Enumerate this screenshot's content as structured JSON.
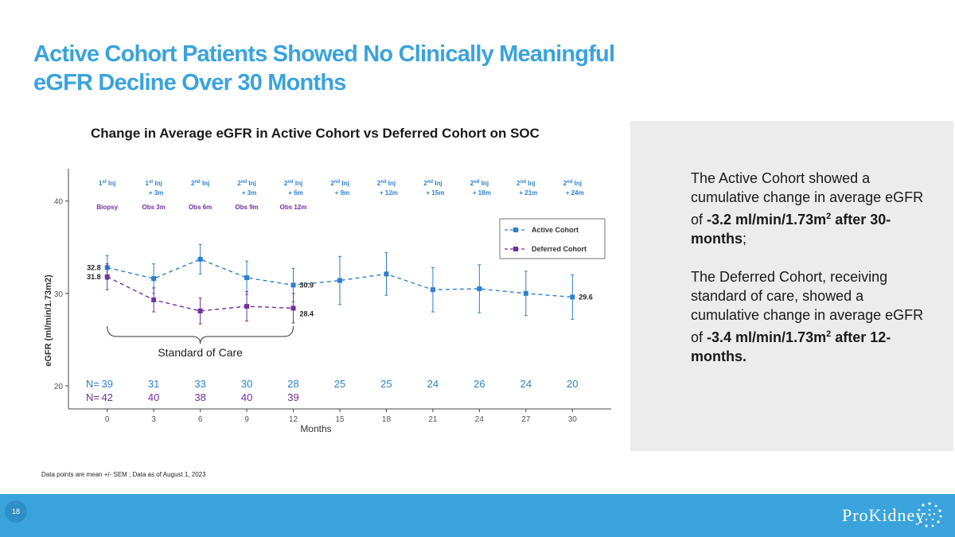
{
  "slide": {
    "title_line1": "Active Cohort Patients Showed No Clinically Meaningful",
    "title_line2": "eGFR Decline Over 30 Months",
    "page_number": "18",
    "footnote": "Data points are mean +/- SEM ; Data as of August 1, 2023",
    "logo_text": "ProKidney"
  },
  "side_panel": {
    "p1_text": "The Active Cohort showed a cumulative change in average eGFR of",
    "p1_value": "-3.2 ml/min/1.73m",
    "p1_suffix": "after 30-months",
    "p2_text": "The Deferred Cohort, receiving standard of care, showed a cumulative change in average eGFR of",
    "p2_value": "-3.4  ml/min/1.73m",
    "p2_suffix": "after 12-months."
  },
  "colors": {
    "active": "#2e7fcf",
    "deferred": "#7030a0",
    "title": "#3aa3dc",
    "footer": "#3aa3dc"
  },
  "chart_data": {
    "type": "line",
    "title": "Change in Average eGFR in Active Cohort vs Deferred Cohort on SOC",
    "xlabel": "Months",
    "ylabel": "eGFR (ml/min/1.73m2)",
    "xlim": [
      -2.5,
      32.5
    ],
    "ylim": [
      17.5,
      43.5
    ],
    "xticks": [
      0,
      3,
      6,
      9,
      12,
      15,
      18,
      21,
      24,
      27,
      30
    ],
    "yticks": [
      20,
      30,
      40
    ],
    "legend_position": "top-right",
    "series": [
      {
        "name": "Active Cohort",
        "color": "#2e7fcf",
        "x": [
          0,
          3,
          6,
          9,
          12,
          15,
          18,
          21,
          24,
          27,
          30
        ],
        "y": [
          32.8,
          31.6,
          33.7,
          31.7,
          30.9,
          31.4,
          32.1,
          30.4,
          30.5,
          30.0,
          29.6
        ],
        "err": [
          1.3,
          1.6,
          1.6,
          1.8,
          1.8,
          2.6,
          2.3,
          2.4,
          2.6,
          2.4,
          2.4
        ]
      },
      {
        "name": "Deferred Cohort",
        "color": "#7030a0",
        "x": [
          0,
          3,
          6,
          9,
          12
        ],
        "y": [
          31.8,
          29.3,
          28.1,
          28.6,
          28.4
        ],
        "err": [
          1.4,
          1.3,
          1.4,
          1.6,
          1.6
        ]
      }
    ],
    "data_labels": [
      {
        "text": "32.8",
        "series": 0,
        "index": 0,
        "side": "left"
      },
      {
        "text": "30.9",
        "series": 0,
        "index": 4,
        "side": "right"
      },
      {
        "text": "29.6",
        "series": 0,
        "index": 10,
        "side": "right"
      },
      {
        "text": "31.8",
        "series": 1,
        "index": 0,
        "side": "left"
      },
      {
        "text": "28.4",
        "series": 1,
        "index": 4,
        "side": "right"
      }
    ],
    "injection_labels": [
      {
        "x": 0,
        "sup": "st",
        "line2": ""
      },
      {
        "x": 3,
        "sup": "st",
        "line2": "+ 3m"
      },
      {
        "x": 6,
        "sup": "nd",
        "line2": ""
      },
      {
        "x": 9,
        "sup": "nd",
        "line2": "+ 3m"
      },
      {
        "x": 12,
        "sup": "nd",
        "line2": "+ 6m"
      },
      {
        "x": 15,
        "sup": "nd",
        "line2": "+ 9m"
      },
      {
        "x": 18,
        "sup": "nd",
        "line2": "+ 12m"
      },
      {
        "x": 21,
        "sup": "nd",
        "line2": "+ 15m"
      },
      {
        "x": 24,
        "sup": "nd",
        "line2": "+ 18m"
      },
      {
        "x": 27,
        "sup": "nd",
        "line2": "+ 21m"
      },
      {
        "x": 30,
        "sup": "nd",
        "line2": "+ 24m"
      }
    ],
    "injection_prefix": [
      "1",
      "1",
      "2",
      "2",
      "2",
      "2",
      "2",
      "2",
      "2",
      "2",
      "2"
    ],
    "observation_labels": [
      {
        "x": 0,
        "text": "Biopsy"
      },
      {
        "x": 3,
        "text": "Obs 3m"
      },
      {
        "x": 6,
        "text": "Obs 6m"
      },
      {
        "x": 9,
        "text": "Obs 9m"
      },
      {
        "x": 12,
        "text": "Obs 12m"
      }
    ],
    "n_label": "N=",
    "n_active": [
      39,
      31,
      33,
      30,
      28,
      25,
      25,
      24,
      26,
      24,
      20
    ],
    "n_deferred": [
      42,
      40,
      38,
      40,
      39
    ],
    "bracket_label": "Standard of Care",
    "bracket_range": [
      0,
      12
    ]
  }
}
